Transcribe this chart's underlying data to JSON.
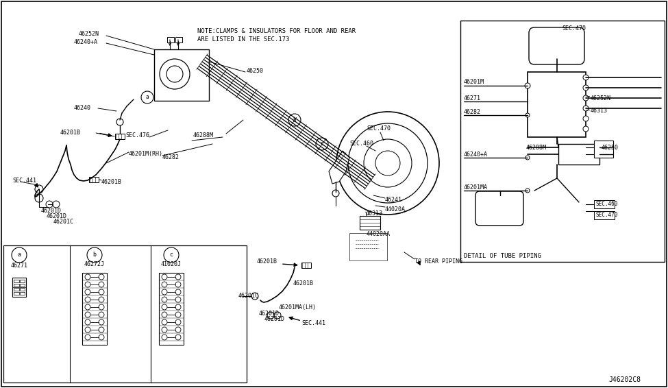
{
  "background_color": "#ffffff",
  "figsize": [
    9.75,
    5.66
  ],
  "dpi": 100,
  "diagram_code": "J46202C8",
  "line_color": "#000000",
  "text_color": "#000000",
  "note1": "NOTE:CLAMPS & INSULATORS FOR FLOOR AND REAR",
  "note2": "ARE LISTED IN THE SEC.173",
  "detail_label": "DETAIL OF TUBE PIPING",
  "to_rear": "TO REAR PIPING"
}
